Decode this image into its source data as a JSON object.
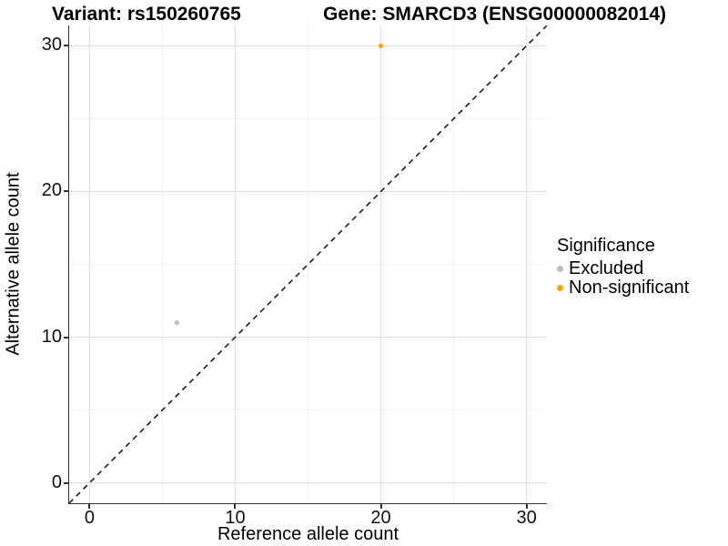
{
  "titles": {
    "variant": "Variant: rs150260765",
    "gene": "Gene: SMARCD3 (ENSG00000082014)"
  },
  "chart_data": {
    "type": "scatter",
    "xlabel": "Reference allele count",
    "ylabel": "Alternative allele count",
    "xlim": [
      -1.4,
      31.4
    ],
    "ylim": [
      -1.4,
      31.4
    ],
    "xticks": [
      0,
      10,
      20,
      30
    ],
    "yticks": [
      0,
      10,
      20,
      30
    ],
    "minor_xticks": [
      5,
      15,
      25
    ],
    "minor_yticks": [
      5,
      15,
      25
    ],
    "grid": true,
    "identity_line": {
      "style": "dashed",
      "color": "#111111",
      "from": [
        -1.4,
        -1.4
      ],
      "to": [
        31.4,
        31.4
      ]
    },
    "series": [
      {
        "name": "Excluded",
        "color": "#BEBEBE",
        "points": [
          [
            6,
            11
          ]
        ]
      },
      {
        "name": "Non-significant",
        "color": "#FFA500",
        "points": [
          [
            20,
            30
          ]
        ]
      }
    ],
    "legend": {
      "title": "Significance",
      "position": "right",
      "items": [
        {
          "label": "Excluded",
          "color": "#BEBEBE"
        },
        {
          "label": "Non-significant",
          "color": "#FFA500"
        }
      ]
    }
  },
  "style": {
    "grid_major_color": "#E3E3E3",
    "grid_minor_color": "#F0F0F0",
    "axis_color": "#333333",
    "point_radius": 2.6,
    "legend_dot_diameter": 7
  }
}
